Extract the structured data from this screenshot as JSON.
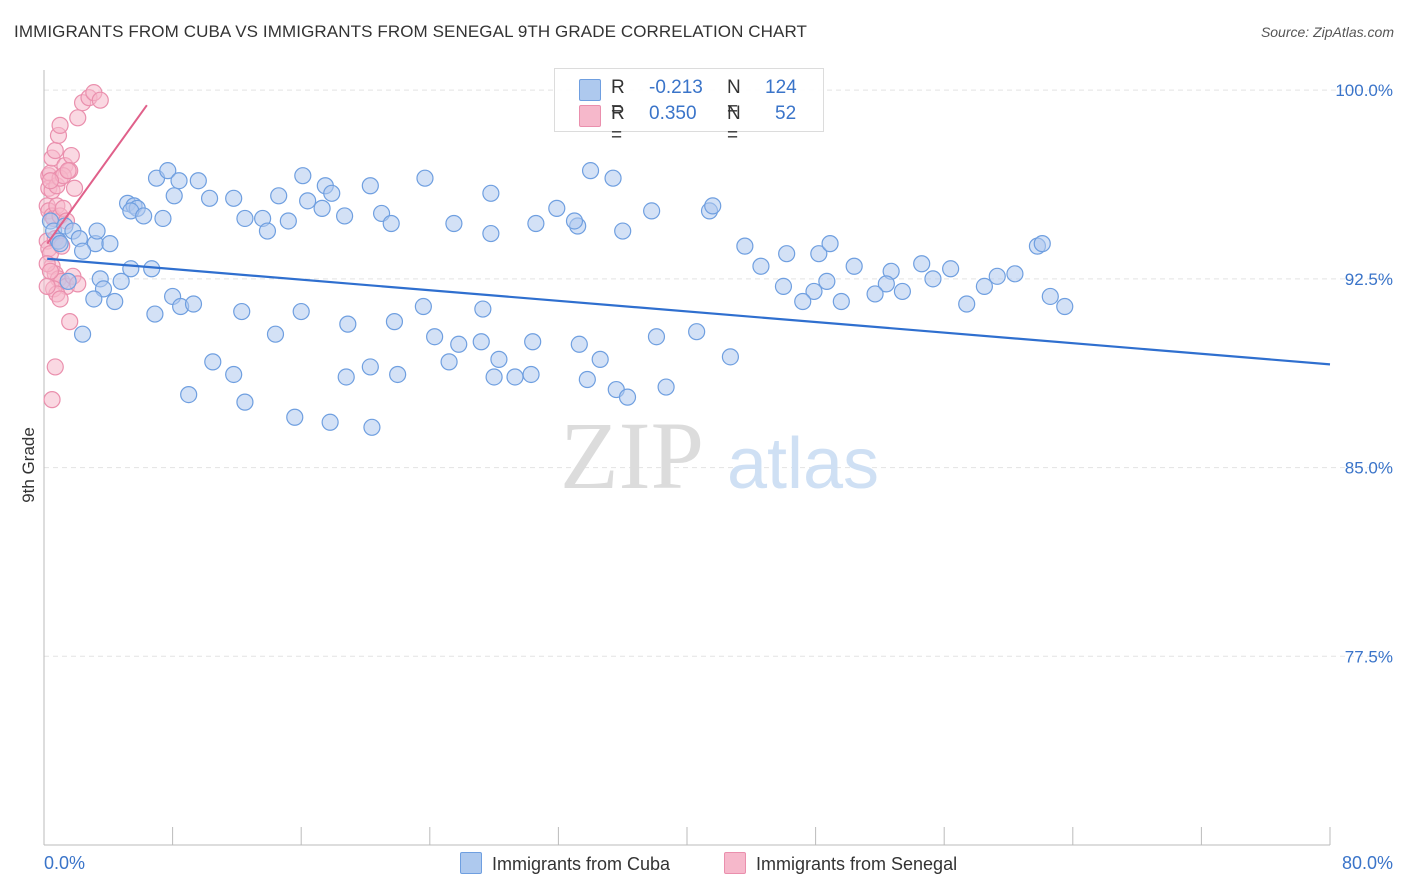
{
  "header": {
    "title": "IMMIGRANTS FROM CUBA VS IMMIGRANTS FROM SENEGAL 9TH GRADE CORRELATION CHART",
    "source": "Source: ZipAtlas.com"
  },
  "watermark": {
    "zip": "ZIP",
    "atlas": "atlas"
  },
  "legend": {
    "rows": [
      {
        "r_label": "R =",
        "r_value": "-0.213",
        "n_label": "N =",
        "n_value": "124"
      },
      {
        "r_label": "R =",
        "r_value": "0.350",
        "n_label": "N =",
        "n_value": "52"
      }
    ]
  },
  "colors": {
    "cuba_fill": "#aec9ee",
    "cuba_stroke": "#6f9fe0",
    "cuba_line": "#2f6fcf",
    "senegal_fill": "#f6b8cb",
    "senegal_stroke": "#ea8fad",
    "senegal_line": "#e0608a",
    "tick_label": "#3a74c9",
    "grid": "#e3e3e3"
  },
  "chart_data": {
    "type": "scatter",
    "title": "IMMIGRANTS FROM CUBA VS IMMIGRANTS FROM SENEGAL 9TH GRADE CORRELATION CHART",
    "xlabel": "",
    "ylabel": "9th Grade",
    "xlim": [
      0,
      80
    ],
    "ylim": [
      70.0,
      100.8
    ],
    "x_tick_labels": [
      "0.0%",
      "80.0%"
    ],
    "y_ticks": [
      77.5,
      85.0,
      92.5,
      100.0
    ],
    "y_tick_labels": [
      "77.5%",
      "85.0%",
      "92.5%",
      "100.0%"
    ],
    "grid": true,
    "legend_position": "top-center",
    "series": [
      {
        "name": "Immigrants from Cuba",
        "R": -0.213,
        "N": 124,
        "trend": [
          [
            0.2,
            93.3
          ],
          [
            80.0,
            89.1
          ]
        ],
        "points": [
          [
            0.4,
            94.8
          ],
          [
            0.6,
            94.4
          ],
          [
            0.9,
            94.0
          ],
          [
            1.0,
            93.9
          ],
          [
            1.3,
            94.6
          ],
          [
            1.8,
            94.4
          ],
          [
            2.2,
            94.1
          ],
          [
            1.5,
            92.4
          ],
          [
            3.2,
            93.9
          ],
          [
            3.5,
            92.5
          ],
          [
            3.7,
            92.1
          ],
          [
            3.1,
            91.7
          ],
          [
            2.4,
            93.6
          ],
          [
            3.3,
            94.4
          ],
          [
            2.4,
            90.3
          ],
          [
            4.1,
            93.9
          ],
          [
            5.2,
            95.5
          ],
          [
            5.6,
            95.4
          ],
          [
            5.8,
            95.3
          ],
          [
            5.4,
            95.2
          ],
          [
            6.2,
            95.0
          ],
          [
            7.4,
            94.9
          ],
          [
            8.1,
            95.8
          ],
          [
            7.0,
            96.5
          ],
          [
            7.7,
            96.8
          ],
          [
            8.4,
            96.4
          ],
          [
            9.6,
            96.4
          ],
          [
            10.3,
            95.7
          ],
          [
            11.8,
            95.7
          ],
          [
            12.5,
            94.9
          ],
          [
            13.6,
            94.9
          ],
          [
            13.9,
            94.4
          ],
          [
            14.6,
            95.8
          ],
          [
            15.2,
            94.8
          ],
          [
            16.1,
            96.6
          ],
          [
            16.4,
            95.6
          ],
          [
            17.5,
            96.2
          ],
          [
            17.9,
            95.9
          ],
          [
            17.3,
            95.3
          ],
          [
            18.7,
            95.0
          ],
          [
            21.0,
            95.1
          ],
          [
            21.6,
            94.7
          ],
          [
            20.3,
            96.2
          ],
          [
            23.7,
            96.5
          ],
          [
            25.5,
            94.7
          ],
          [
            27.8,
            95.9
          ],
          [
            27.8,
            94.3
          ],
          [
            30.6,
            94.7
          ],
          [
            31.9,
            95.3
          ],
          [
            33.2,
            94.6
          ],
          [
            33.0,
            94.8
          ],
          [
            36.0,
            94.4
          ],
          [
            35.4,
            96.5
          ],
          [
            34.0,
            96.8
          ],
          [
            37.8,
            95.2
          ],
          [
            41.4,
            95.2
          ],
          [
            41.6,
            95.4
          ],
          [
            43.6,
            93.8
          ],
          [
            44.6,
            93.0
          ],
          [
            46.2,
            93.5
          ],
          [
            48.2,
            93.5
          ],
          [
            48.9,
            93.9
          ],
          [
            48.7,
            92.4
          ],
          [
            52.7,
            92.8
          ],
          [
            54.6,
            93.1
          ],
          [
            52.4,
            92.3
          ],
          [
            57.4,
            91.5
          ],
          [
            56.4,
            92.9
          ],
          [
            61.8,
            93.8
          ],
          [
            62.1,
            93.9
          ],
          [
            59.3,
            92.6
          ],
          [
            55.3,
            92.5
          ],
          [
            62.6,
            91.8
          ],
          [
            49.6,
            91.6
          ],
          [
            47.9,
            92.0
          ],
          [
            46.0,
            92.2
          ],
          [
            47.2,
            91.6
          ],
          [
            51.7,
            91.9
          ],
          [
            50.4,
            93.0
          ],
          [
            53.4,
            92.0
          ],
          [
            58.5,
            92.2
          ],
          [
            60.4,
            92.7
          ],
          [
            63.5,
            91.4
          ],
          [
            5.4,
            92.9
          ],
          [
            4.4,
            91.6
          ],
          [
            4.8,
            92.4
          ],
          [
            6.9,
            91.1
          ],
          [
            6.7,
            92.9
          ],
          [
            8.0,
            91.8
          ],
          [
            8.5,
            91.4
          ],
          [
            9.3,
            91.5
          ],
          [
            12.3,
            91.2
          ],
          [
            14.4,
            90.3
          ],
          [
            16.0,
            91.2
          ],
          [
            18.9,
            90.7
          ],
          [
            21.8,
            90.8
          ],
          [
            23.6,
            91.4
          ],
          [
            24.3,
            90.2
          ],
          [
            27.2,
            90.0
          ],
          [
            27.3,
            91.3
          ],
          [
            30.4,
            90.0
          ],
          [
            33.3,
            89.9
          ],
          [
            33.8,
            88.5
          ],
          [
            34.6,
            89.3
          ],
          [
            35.6,
            88.1
          ],
          [
            36.3,
            87.8
          ],
          [
            38.7,
            88.2
          ],
          [
            38.1,
            90.2
          ],
          [
            40.6,
            90.4
          ],
          [
            42.7,
            89.4
          ],
          [
            10.5,
            89.2
          ],
          [
            11.8,
            88.7
          ],
          [
            9.0,
            87.9
          ],
          [
            12.5,
            87.6
          ],
          [
            15.6,
            87.0
          ],
          [
            17.8,
            86.8
          ],
          [
            20.4,
            86.6
          ],
          [
            18.8,
            88.6
          ],
          [
            20.3,
            89.0
          ],
          [
            25.2,
            89.2
          ],
          [
            22.0,
            88.7
          ],
          [
            25.8,
            89.9
          ],
          [
            28.3,
            89.3
          ],
          [
            28.0,
            88.6
          ],
          [
            30.3,
            88.7
          ],
          [
            29.3,
            88.6
          ]
        ]
      },
      {
        "name": "Immigrants from Senegal",
        "R": 0.35,
        "N": 52,
        "trend": [
          [
            0.2,
            93.9
          ],
          [
            6.4,
            99.4
          ]
        ],
        "points": [
          [
            0.3,
            96.6
          ],
          [
            0.4,
            96.7
          ],
          [
            0.5,
            97.3
          ],
          [
            0.7,
            97.6
          ],
          [
            0.9,
            98.2
          ],
          [
            1.0,
            98.6
          ],
          [
            1.3,
            97.0
          ],
          [
            1.7,
            97.4
          ],
          [
            2.1,
            98.9
          ],
          [
            2.4,
            99.5
          ],
          [
            2.8,
            99.7
          ],
          [
            3.1,
            99.9
          ],
          [
            3.5,
            99.6
          ],
          [
            0.2,
            95.4
          ],
          [
            0.3,
            95.2
          ],
          [
            0.5,
            95.0
          ],
          [
            0.6,
            94.9
          ],
          [
            0.8,
            95.4
          ],
          [
            1.0,
            95.0
          ],
          [
            1.2,
            95.3
          ],
          [
            1.4,
            94.8
          ],
          [
            1.6,
            96.8
          ],
          [
            0.2,
            94.0
          ],
          [
            0.3,
            93.7
          ],
          [
            0.4,
            93.5
          ],
          [
            0.5,
            93.0
          ],
          [
            0.7,
            92.7
          ],
          [
            0.9,
            92.5
          ],
          [
            1.1,
            92.4
          ],
          [
            1.4,
            92.2
          ],
          [
            1.8,
            92.6
          ],
          [
            2.1,
            92.3
          ],
          [
            0.2,
            93.1
          ],
          [
            0.4,
            92.8
          ],
          [
            0.6,
            92.1
          ],
          [
            0.8,
            91.9
          ],
          [
            1.0,
            91.7
          ],
          [
            0.3,
            96.1
          ],
          [
            0.5,
            96.0
          ],
          [
            0.8,
            96.2
          ],
          [
            1.0,
            96.5
          ],
          [
            1.2,
            96.6
          ],
          [
            1.5,
            96.8
          ],
          [
            1.9,
            96.1
          ],
          [
            0.4,
            96.4
          ],
          [
            0.7,
            94.1
          ],
          [
            0.9,
            94.0
          ],
          [
            1.1,
            93.8
          ],
          [
            0.2,
            92.2
          ],
          [
            0.5,
            87.7
          ],
          [
            0.7,
            89.0
          ],
          [
            1.6,
            90.8
          ]
        ]
      }
    ]
  },
  "bottom_legend": {
    "cuba": "Immigrants from Cuba",
    "senegal": "Immigrants from Senegal"
  }
}
